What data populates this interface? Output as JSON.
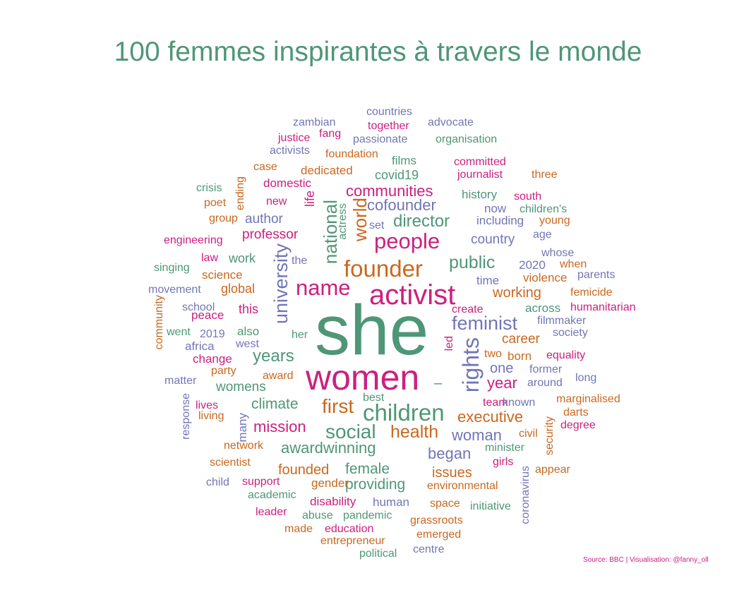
{
  "title": "100 femmes inspirantes à travers le monde",
  "source": "Source: BBC | Visualisation: @fanny_oll",
  "colors": {
    "green": "#4f9677",
    "pink": "#cc2080",
    "orange": "#c9681f",
    "purple": "#7275b6"
  },
  "chart_data": {
    "type": "wordcloud",
    "title": "100 femmes inspirantes à travers le monde",
    "words": [
      {
        "text": "she",
        "size": 100,
        "color": "#4f9677"
      },
      {
        "text": "women",
        "size": 50,
        "color": "#cc2080"
      },
      {
        "text": "activist",
        "size": 40,
        "color": "#cc2080"
      },
      {
        "text": "founder",
        "size": 33,
        "color": "#c9681f"
      },
      {
        "text": "children",
        "size": 33,
        "color": "#4f9677"
      },
      {
        "text": "rights",
        "size": 32,
        "color": "#7275b6"
      },
      {
        "text": "people",
        "size": 31,
        "color": "#cc2080"
      },
      {
        "text": "name",
        "size": 31,
        "color": "#cc2080"
      },
      {
        "text": "university",
        "size": 27,
        "color": "#7275b6"
      },
      {
        "text": "feminist",
        "size": 27,
        "color": "#7275b6"
      },
      {
        "text": "social",
        "size": 28,
        "color": "#4f9677"
      },
      {
        "text": "first",
        "size": 28,
        "color": "#c9681f"
      },
      {
        "text": "national",
        "size": 26,
        "color": "#4f9677"
      },
      {
        "text": "world",
        "size": 26,
        "color": "#c9681f"
      },
      {
        "text": "health",
        "size": 25,
        "color": "#c9681f"
      },
      {
        "text": "public",
        "size": 25,
        "color": "#4f9677"
      },
      {
        "text": "years",
        "size": 24,
        "color": "#4f9677"
      },
      {
        "text": "director",
        "size": 24,
        "color": "#4f9677"
      },
      {
        "text": "communities",
        "size": 22,
        "color": "#cc2080"
      },
      {
        "text": "cofounder",
        "size": 22,
        "color": "#7275b6"
      },
      {
        "text": "awardwinning",
        "size": 22,
        "color": "#4f9677"
      },
      {
        "text": "executive",
        "size": 22,
        "color": "#c9681f"
      },
      {
        "text": "woman",
        "size": 22,
        "color": "#7275b6"
      },
      {
        "text": "began",
        "size": 22,
        "color": "#7275b6"
      },
      {
        "text": "mission",
        "size": 22,
        "color": "#cc2080"
      },
      {
        "text": "year",
        "size": 22,
        "color": "#cc2080"
      },
      {
        "text": "climate",
        "size": 21,
        "color": "#4f9677"
      },
      {
        "text": "providing",
        "size": 21,
        "color": "#4f9677"
      },
      {
        "text": "female",
        "size": 21,
        "color": "#4f9677"
      },
      {
        "text": "founded",
        "size": 20,
        "color": "#c9681f"
      },
      {
        "text": "issues",
        "size": 20,
        "color": "#c9681f"
      },
      {
        "text": "working",
        "size": 20,
        "color": "#c9681f"
      },
      {
        "text": "womens",
        "size": 19,
        "color": "#4f9677"
      },
      {
        "text": "one",
        "size": 20,
        "color": "#7275b6"
      },
      {
        "text": "career",
        "size": 19,
        "color": "#c9681f"
      },
      {
        "text": "country",
        "size": 19,
        "color": "#7275b6"
      },
      {
        "text": "professor",
        "size": 19,
        "color": "#cc2080"
      },
      {
        "text": "author",
        "size": 19,
        "color": "#7275b6"
      },
      {
        "text": "covid19",
        "size": 18,
        "color": "#4f9677"
      },
      {
        "text": "dedicated",
        "size": 17,
        "color": "#c9681f"
      },
      {
        "text": "global",
        "size": 18,
        "color": "#c9681f"
      },
      {
        "text": "this",
        "size": 18,
        "color": "#cc2080"
      },
      {
        "text": "work",
        "size": 18,
        "color": "#4f9677"
      },
      {
        "text": "life",
        "size": 18,
        "color": "#cc2080"
      },
      {
        "text": "disability",
        "size": 17,
        "color": "#cc2080"
      },
      {
        "text": "human",
        "size": 17,
        "color": "#7275b6"
      },
      {
        "text": "gender",
        "size": 17,
        "color": "#c9681f"
      },
      {
        "text": "violence",
        "size": 17,
        "color": "#c9681f"
      },
      {
        "text": "born",
        "size": 17,
        "color": "#c9681f"
      },
      {
        "text": "time",
        "size": 17,
        "color": "#7275b6"
      },
      {
        "text": "across",
        "size": 17,
        "color": "#4f9677"
      },
      {
        "text": "also",
        "size": 17,
        "color": "#4f9677"
      },
      {
        "text": "change",
        "size": 17,
        "color": "#cc2080"
      },
      {
        "text": "africa",
        "size": 17,
        "color": "#7275b6"
      },
      {
        "text": "science",
        "size": 17,
        "color": "#c9681f"
      },
      {
        "text": "peace",
        "size": 17,
        "color": "#cc2080"
      },
      {
        "text": "domestic",
        "size": 17,
        "color": "#cc2080"
      },
      {
        "text": "including",
        "size": 17,
        "color": "#7275b6"
      },
      {
        "text": "history",
        "size": 17,
        "color": "#4f9677"
      },
      {
        "text": "films",
        "size": 17,
        "color": "#4f9677"
      },
      {
        "text": "now",
        "size": 17,
        "color": "#7275b6"
      },
      {
        "text": "2020",
        "size": 17,
        "color": "#7275b6"
      },
      {
        "text": "many",
        "size": 17,
        "color": "#7275b6"
      },
      {
        "text": "network",
        "size": 16,
        "color": "#c9681f"
      },
      {
        "text": "living",
        "size": 16,
        "color": "#c9681f"
      },
      {
        "text": "party",
        "size": 16,
        "color": "#c9681f"
      },
      {
        "text": "new",
        "size": 16,
        "color": "#cc2080"
      },
      {
        "text": "her",
        "size": 16,
        "color": "#4f9677"
      },
      {
        "text": "the",
        "size": 16,
        "color": "#7275b6"
      },
      {
        "text": "set",
        "size": 16,
        "color": "#7275b6"
      },
      {
        "text": "environmental",
        "size": 16,
        "color": "#c9681f"
      },
      {
        "text": "education",
        "size": 16,
        "color": "#cc2080"
      },
      {
        "text": "abuse",
        "size": 16,
        "color": "#4f9677"
      },
      {
        "text": "pandemic",
        "size": 16,
        "color": "#4f9677"
      },
      {
        "text": "grassroots",
        "size": 16,
        "color": "#c9681f"
      },
      {
        "text": "initiative",
        "size": 16,
        "color": "#4f9677"
      },
      {
        "text": "space",
        "size": 16,
        "color": "#c9681f"
      },
      {
        "text": "coronavirus",
        "size": 16,
        "color": "#7275b6"
      },
      {
        "text": "security",
        "size": 16,
        "color": "#c9681f"
      },
      {
        "text": "girls",
        "size": 16,
        "color": "#cc2080"
      },
      {
        "text": "minister",
        "size": 16,
        "color": "#4f9677"
      },
      {
        "text": "civil",
        "size": 16,
        "color": "#c9681f"
      },
      {
        "text": "leader",
        "size": 16,
        "color": "#cc2080"
      },
      {
        "text": "made",
        "size": 16,
        "color": "#c9681f"
      },
      {
        "text": "entrepreneur",
        "size": 16,
        "color": "#c9681f"
      },
      {
        "text": "emerged",
        "size": 16,
        "color": "#c9681f"
      },
      {
        "text": "political",
        "size": 16,
        "color": "#4f9677"
      },
      {
        "text": "centre",
        "size": 16,
        "color": "#7275b6"
      },
      {
        "text": "academic",
        "size": 16,
        "color": "#4f9677"
      },
      {
        "text": "support",
        "size": 16,
        "color": "#cc2080"
      },
      {
        "text": "child",
        "size": 16,
        "color": "#7275b6"
      },
      {
        "text": "scientist",
        "size": 16,
        "color": "#c9681f"
      },
      {
        "text": "response",
        "size": 16,
        "color": "#7275b6"
      },
      {
        "text": "lives",
        "size": 16,
        "color": "#cc2080"
      },
      {
        "text": "matter",
        "size": 16,
        "color": "#7275b6"
      },
      {
        "text": "award",
        "size": 16,
        "color": "#c9681f"
      },
      {
        "text": "best",
        "size": 16,
        "color": "#4f9677"
      },
      {
        "text": "led",
        "size": 16,
        "color": "#cc2080"
      },
      {
        "text": "two",
        "size": 16,
        "color": "#c9681f"
      },
      {
        "text": "former",
        "size": 16,
        "color": "#7275b6"
      },
      {
        "text": "around",
        "size": 16,
        "color": "#7275b6"
      },
      {
        "text": "team",
        "size": 16,
        "color": "#cc2080"
      },
      {
        "text": "known",
        "size": 16,
        "color": "#7275b6"
      },
      {
        "text": "marginalised",
        "size": 16,
        "color": "#c9681f"
      },
      {
        "text": "darts",
        "size": 16,
        "color": "#c9681f"
      },
      {
        "text": "degree",
        "size": 16,
        "color": "#cc2080"
      },
      {
        "text": "appear",
        "size": 16,
        "color": "#c9681f"
      },
      {
        "text": "long",
        "size": 16,
        "color": "#7275b6"
      },
      {
        "text": "equality",
        "size": 16,
        "color": "#cc2080"
      },
      {
        "text": "society",
        "size": 16,
        "color": "#7275b6"
      },
      {
        "text": "filmmaker",
        "size": 16,
        "color": "#7275b6"
      },
      {
        "text": "humanitarian",
        "size": 16,
        "color": "#cc2080"
      },
      {
        "text": "femicide",
        "size": 16,
        "color": "#c9681f"
      },
      {
        "text": "parents",
        "size": 16,
        "color": "#7275b6"
      },
      {
        "text": "when",
        "size": 16,
        "color": "#c9681f"
      },
      {
        "text": "whose",
        "size": 16,
        "color": "#7275b6"
      },
      {
        "text": "age",
        "size": 16,
        "color": "#7275b6"
      },
      {
        "text": "young",
        "size": 16,
        "color": "#c9681f"
      },
      {
        "text": "children's",
        "size": 16,
        "color": "#4f9677"
      },
      {
        "text": "south",
        "size": 16,
        "color": "#cc2080"
      },
      {
        "text": "three",
        "size": 16,
        "color": "#c9681f"
      },
      {
        "text": "journalist",
        "size": 16,
        "color": "#cc2080"
      },
      {
        "text": "committed",
        "size": 16,
        "color": "#cc2080"
      },
      {
        "text": "organisation",
        "size": 16,
        "color": "#4f9677"
      },
      {
        "text": "advocate",
        "size": 16,
        "color": "#7275b6"
      },
      {
        "text": "countries",
        "size": 16,
        "color": "#7275b6"
      },
      {
        "text": "together",
        "size": 16,
        "color": "#cc2080"
      },
      {
        "text": "passionate",
        "size": 16,
        "color": "#7275b6"
      },
      {
        "text": "foundation",
        "size": 16,
        "color": "#c9681f"
      },
      {
        "text": "zambian",
        "size": 16,
        "color": "#7275b6"
      },
      {
        "text": "fang",
        "size": 16,
        "color": "#cc2080"
      },
      {
        "text": "justice",
        "size": 16,
        "color": "#cc2080"
      },
      {
        "text": "activists",
        "size": 16,
        "color": "#7275b6"
      },
      {
        "text": "case",
        "size": 16,
        "color": "#c9681f"
      },
      {
        "text": "crisis",
        "size": 16,
        "color": "#4f9677"
      },
      {
        "text": "ending",
        "size": 16,
        "color": "#c9681f"
      },
      {
        "text": "poet",
        "size": 16,
        "color": "#c9681f"
      },
      {
        "text": "group",
        "size": 16,
        "color": "#c9681f"
      },
      {
        "text": "engineering",
        "size": 16,
        "color": "#cc2080"
      },
      {
        "text": "law",
        "size": 16,
        "color": "#cc2080"
      },
      {
        "text": "singing",
        "size": 16,
        "color": "#4f9677"
      },
      {
        "text": "movement",
        "size": 16,
        "color": "#7275b6"
      },
      {
        "text": "school",
        "size": 16,
        "color": "#7275b6"
      },
      {
        "text": "community",
        "size": 16,
        "color": "#c9681f"
      },
      {
        "text": "went",
        "size": 16,
        "color": "#4f9677"
      },
      {
        "text": "2019",
        "size": 16,
        "color": "#7275b6"
      },
      {
        "text": "west",
        "size": 16,
        "color": "#7275b6"
      },
      {
        "text": "actress",
        "size": 16,
        "color": "#4f9677"
      },
      {
        "text": "create",
        "size": 16,
        "color": "#cc2080"
      },
      {
        "text": "–",
        "size": 20,
        "color": "#4f9677"
      }
    ]
  }
}
